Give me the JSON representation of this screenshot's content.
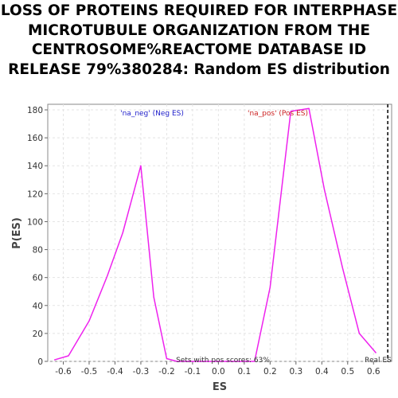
{
  "chart_data": {
    "type": "line",
    "title": "LOSS OF PROTEINS REQUIRED FOR INTERPHASE MICROTUBULE ORGANIZATION FROM THE CENTROSOME%REACTOME DATABASE ID RELEASE 79%380284: Random ES distribution",
    "xlabel": "ES",
    "ylabel": "P(ES)",
    "xlim": [
      -0.66,
      0.67
    ],
    "ylim": [
      0,
      184
    ],
    "xticks": [
      -0.6,
      -0.5,
      -0.4,
      -0.3,
      -0.2,
      -0.1,
      0.0,
      0.1,
      0.2,
      0.3,
      0.4,
      0.5,
      0.6
    ],
    "xtick_labels": [
      "-0.6",
      "-0.5",
      "-0.4",
      "-0.3",
      "-0.2",
      "-0.1",
      "0.0",
      "0.1",
      "0.2",
      "0.3",
      "0.4",
      "0.5",
      "0.6"
    ],
    "yticks": [
      0,
      20,
      40,
      60,
      80,
      100,
      120,
      140,
      160,
      180
    ],
    "ytick_labels": [
      "0",
      "20",
      "40",
      "60",
      "80",
      "100",
      "120",
      "140",
      "160",
      "180"
    ],
    "grid": true,
    "series": [
      {
        "color": "#ee22ee",
        "x": [
          -0.635,
          -0.58,
          -0.5,
          -0.43,
          -0.37,
          -0.3,
          -0.25,
          -0.2,
          -0.16,
          -0.1,
          0.14,
          0.2,
          0.28,
          0.35,
          0.41,
          0.48,
          0.545,
          0.61
        ],
        "y": [
          1,
          4,
          29,
          61,
          92,
          140,
          46,
          2,
          0,
          0,
          0,
          53,
          179,
          181,
          123,
          67,
          20,
          6
        ]
      }
    ],
    "real_es": 0.655,
    "annotations": {
      "neg_label": "'na_neg' (Neg ES)",
      "pos_label": "'na_pos' (Pos ES)",
      "sets_label": "Sets with pos scores: 63%",
      "real_es_label": "Real ES"
    },
    "colors": {
      "neg": "#2222cc",
      "pos": "#cc2222",
      "line": "#ee22ee"
    }
  }
}
